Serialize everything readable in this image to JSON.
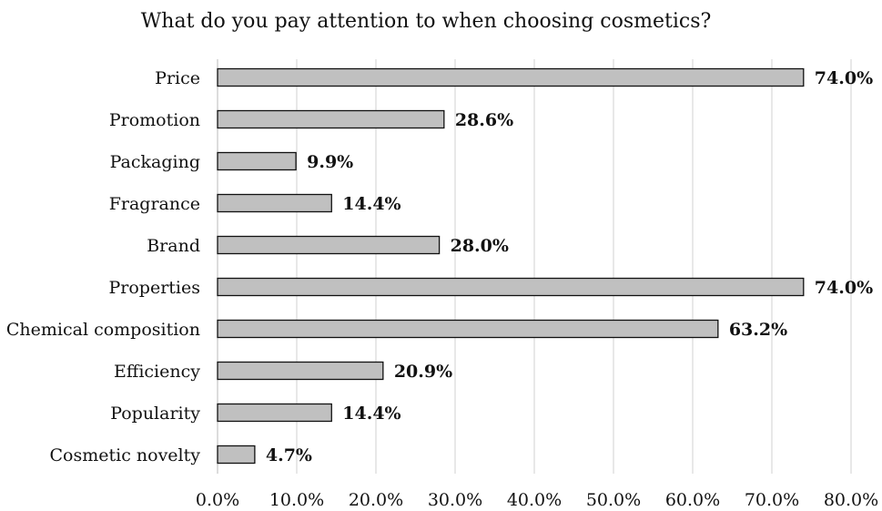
{
  "chart_data": {
    "type": "bar",
    "orientation": "horizontal",
    "title": "What do you pay attention to when choosing cosmetics?",
    "xlabel": "",
    "ylabel": "",
    "categories": [
      "Price",
      "Promotion",
      "Packaging",
      "Fragrance",
      "Brand",
      "Properties",
      "Chemical composition",
      "Efficiency",
      "Popularity",
      "Cosmetic novelty"
    ],
    "values": [
      74.0,
      28.6,
      9.9,
      14.4,
      28.0,
      74.0,
      63.2,
      20.9,
      14.4,
      4.7
    ],
    "data_labels": [
      "74.0%",
      "28.6%",
      "9.9%",
      "14.4%",
      "28.0%",
      "74.0%",
      "63.2%",
      "20.9%",
      "14.4%",
      "4.7%"
    ],
    "xlim": [
      0,
      80
    ],
    "xticks": [
      0,
      10,
      20,
      30,
      40,
      50,
      60,
      70,
      80
    ],
    "xtick_labels": [
      "0.0%",
      "10.0%",
      "20.0%",
      "30.0%",
      "40.0%",
      "50.0%",
      "60.0%",
      "70.0%",
      "80.0%"
    ],
    "grid": "vertical",
    "legend": "none",
    "bar_color": "#c0c0c0",
    "bar_edge_color": "#111111"
  }
}
